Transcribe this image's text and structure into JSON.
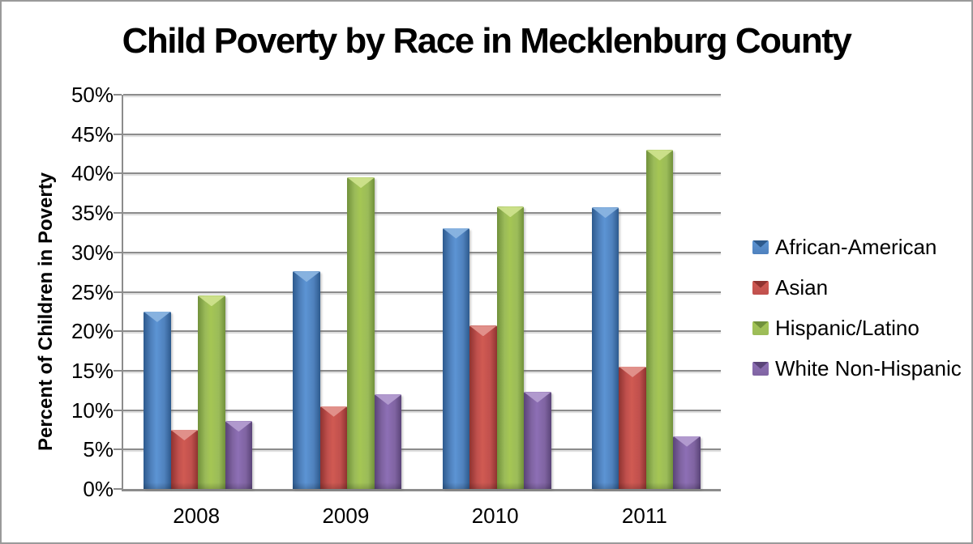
{
  "title": "Child Poverty by Race in Mecklenburg County",
  "chart_data": {
    "type": "bar",
    "title": "Child Poverty by Race in Mecklenburg County",
    "xlabel": "",
    "ylabel": "Percent of Children in Poverty",
    "categories": [
      "2008",
      "2009",
      "2010",
      "2011"
    ],
    "series": [
      {
        "name": "African-American",
        "color": "#4F81BD",
        "color_dark": "#2D5A8D",
        "color_light": "#5C94D4",
        "color_highlight": "#8AB4E0",
        "values": [
          22.5,
          27.6,
          33.1,
          35.7
        ]
      },
      {
        "name": "Asian",
        "color": "#C0504D",
        "color_dark": "#8F3330",
        "color_light": "#D05A52",
        "color_highlight": "#E2938D",
        "values": [
          7.5,
          10.5,
          20.7,
          15.5
        ]
      },
      {
        "name": "Hispanic/Latino",
        "color": "#9BBB59",
        "color_dark": "#71913B",
        "color_light": "#A5C654",
        "color_highlight": "#CEE18C",
        "values": [
          24.5,
          39.5,
          35.8,
          43.0
        ]
      },
      {
        "name": "White Non-Hispanic",
        "color": "#8064A2",
        "color_dark": "#5A4478",
        "color_light": "#8D6FB5",
        "color_highlight": "#B39CD0",
        "values": [
          8.6,
          12.0,
          12.3,
          6.7
        ]
      }
    ],
    "ylim": [
      0,
      50
    ],
    "ytick_step": 5,
    "ytick_labels": [
      "0%",
      "5%",
      "10%",
      "15%",
      "20%",
      "25%",
      "30%",
      "35%",
      "40%",
      "45%",
      "50%"
    ],
    "grid": true,
    "legend_position": "right",
    "gridline_color": "#8C8C8C"
  }
}
